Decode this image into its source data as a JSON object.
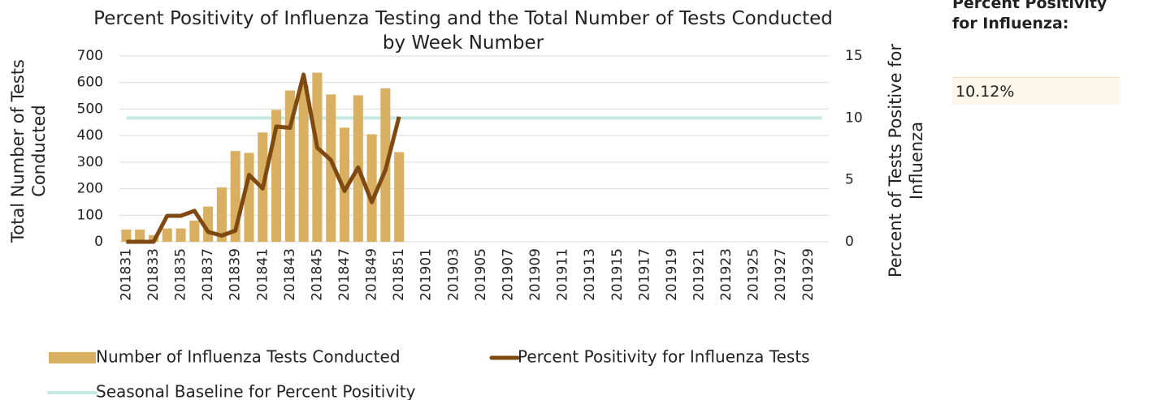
{
  "chart_data": {
    "type": "bar-line",
    "title": "Percent Positivity of Influenza Testing and the Total Number of Tests Conducted by Week Number",
    "y_label": "Total Number of Tests Conducted",
    "y2_label": "Percent of Tests Positive for Influenza",
    "categories": [
      "201831",
      null,
      "201833",
      null,
      "201835",
      null,
      "201837",
      null,
      "201839",
      null,
      "201841",
      null,
      "201843",
      null,
      "201845",
      null,
      "201847",
      null,
      "201849",
      null,
      "201851",
      null,
      "201901",
      null,
      "201903",
      null,
      "201905",
      null,
      "201907",
      null,
      "201909",
      null,
      "201911",
      null,
      "201913",
      null,
      "201915",
      null,
      "201917",
      null,
      "201919",
      null,
      "201921",
      null,
      "201923",
      null,
      "201925",
      null,
      "201927",
      null,
      "201929",
      null
    ],
    "series": [
      {
        "name": "Number of Influenza Tests Conducted",
        "type": "bar",
        "color": "#d9b062",
        "values": [
          46,
          46,
          25,
          50,
          50,
          80,
          133,
          205,
          342,
          335,
          412,
          497,
          570,
          590,
          637,
          555,
          430,
          552,
          405,
          578,
          338,
          null,
          null,
          null,
          null,
          null,
          null,
          null,
          null,
          null,
          null,
          null,
          null,
          null,
          null,
          null,
          null,
          null,
          null,
          null,
          null,
          null,
          null,
          null,
          null,
          null,
          null,
          null,
          null,
          null,
          null,
          null
        ]
      },
      {
        "name": "Percent Positivity for Influenza Tests",
        "type": "line",
        "axis": "y2",
        "color": "#7f4a12",
        "values": [
          0,
          0,
          0,
          2.1,
          2.1,
          2.5,
          0.8,
          0.5,
          0.9,
          5.4,
          4.3,
          9.3,
          9.2,
          13.5,
          7.6,
          6.6,
          4.1,
          6.0,
          3.2,
          5.8,
          10.1,
          null,
          null,
          null,
          null,
          null,
          null,
          null,
          null,
          null,
          null,
          null,
          null,
          null,
          null,
          null,
          null,
          null,
          null,
          null,
          null,
          null,
          null,
          null,
          null,
          null,
          null,
          null,
          null,
          null,
          null,
          null
        ]
      },
      {
        "name": "Seasonal Baseline for Percent Positivity",
        "type": "line",
        "axis": "y2",
        "color": "#c5e9e2",
        "values": [
          10,
          10,
          10,
          10,
          10,
          10,
          10,
          10,
          10,
          10,
          10,
          10,
          10,
          10,
          10,
          10,
          10,
          10,
          10,
          10,
          10,
          10,
          10,
          10,
          10,
          10,
          10,
          10,
          10,
          10,
          10,
          10,
          10,
          10,
          10,
          10,
          10,
          10,
          10,
          10,
          10,
          10,
          10,
          10,
          10,
          10,
          10,
          10,
          10,
          10,
          10,
          10
        ]
      }
    ],
    "ylim": [
      0,
      700
    ],
    "yticks": [
      0,
      100,
      200,
      300,
      400,
      500,
      600,
      700
    ],
    "y2lim": [
      0,
      15
    ],
    "y2ticks": [
      0,
      5,
      10,
      15
    ],
    "grid": true,
    "legend": "bottom"
  },
  "side_panel": {
    "label": "Percent Positivity for Influenza:",
    "value": "10.12%"
  }
}
